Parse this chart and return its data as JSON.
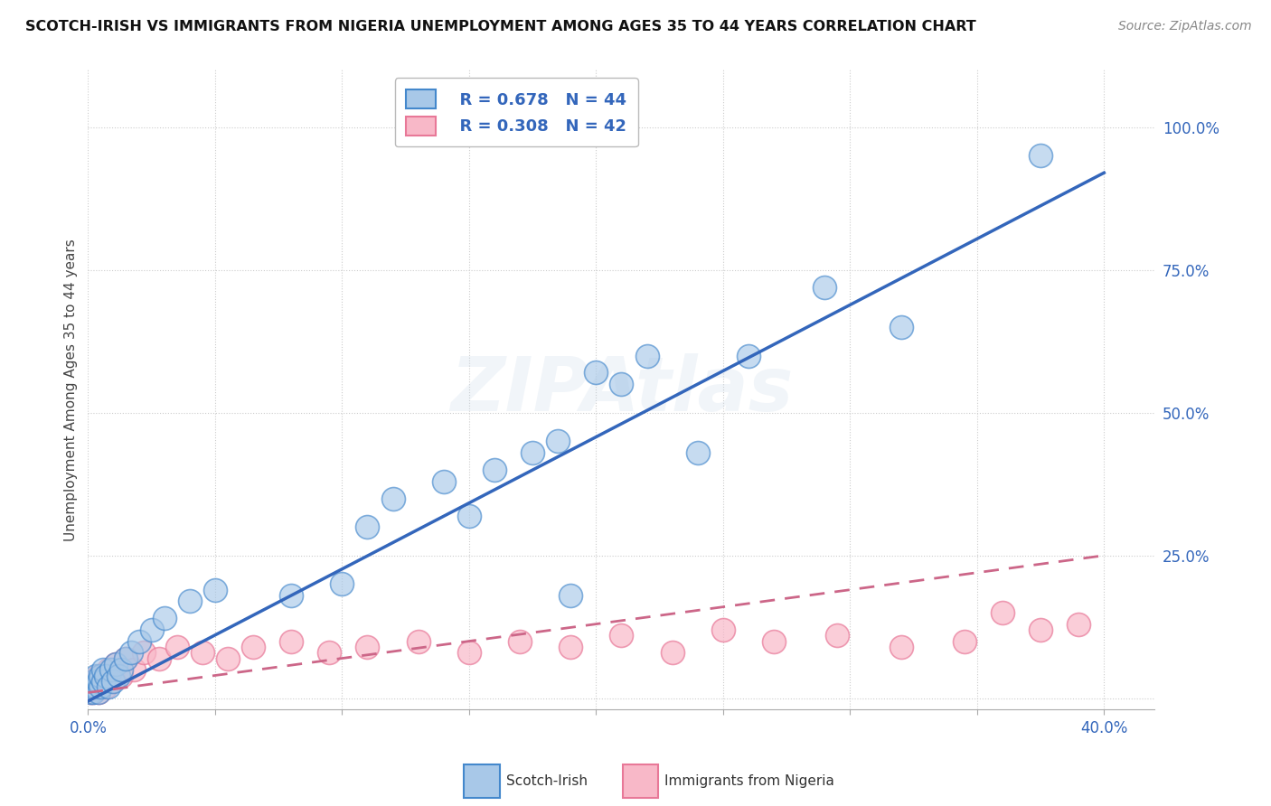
{
  "title": "SCOTCH-IRISH VS IMMIGRANTS FROM NIGERIA UNEMPLOYMENT AMONG AGES 35 TO 44 YEARS CORRELATION CHART",
  "source": "Source: ZipAtlas.com",
  "ylabel": "Unemployment Among Ages 35 to 44 years",
  "xlim": [
    0.0,
    0.42
  ],
  "ylim": [
    -0.02,
    1.1
  ],
  "ytick_vals": [
    0.0,
    0.25,
    0.5,
    0.75,
    1.0
  ],
  "ytick_labels": [
    "",
    "25.0%",
    "50.0%",
    "75.0%",
    "100.0%"
  ],
  "xtick_vals": [
    0.0,
    0.05,
    0.1,
    0.15,
    0.2,
    0.25,
    0.3,
    0.35,
    0.4
  ],
  "xtick_labels": [
    "0.0%",
    "",
    "",
    "",
    "",
    "",
    "",
    "",
    "40.0%"
  ],
  "legend_r1": "R = 0.678",
  "legend_n1": "N = 44",
  "legend_r2": "R = 0.308",
  "legend_n2": "N = 42",
  "blue_fill": "#A8C8E8",
  "blue_edge": "#4488CC",
  "pink_fill": "#F8B8C8",
  "pink_edge": "#E87898",
  "trend_blue": "#3366BB",
  "trend_pink": "#CC6688",
  "watermark": "ZIPAtlas",
  "scotch_irish_x": [
    0.001,
    0.001,
    0.002,
    0.002,
    0.003,
    0.003,
    0.004,
    0.004,
    0.005,
    0.005,
    0.006,
    0.006,
    0.007,
    0.008,
    0.009,
    0.01,
    0.011,
    0.012,
    0.013,
    0.015,
    0.017,
    0.02,
    0.025,
    0.03,
    0.04,
    0.05,
    0.08,
    0.1,
    0.11,
    0.12,
    0.14,
    0.15,
    0.16,
    0.175,
    0.185,
    0.19,
    0.2,
    0.21,
    0.22,
    0.24,
    0.26,
    0.29,
    0.32,
    0.375
  ],
  "scotch_irish_y": [
    0.01,
    0.02,
    0.01,
    0.03,
    0.02,
    0.04,
    0.01,
    0.03,
    0.02,
    0.04,
    0.03,
    0.05,
    0.04,
    0.02,
    0.05,
    0.03,
    0.06,
    0.04,
    0.05,
    0.07,
    0.08,
    0.1,
    0.12,
    0.14,
    0.17,
    0.19,
    0.18,
    0.2,
    0.3,
    0.35,
    0.38,
    0.32,
    0.4,
    0.43,
    0.45,
    0.18,
    0.57,
    0.55,
    0.6,
    0.43,
    0.6,
    0.72,
    0.65,
    0.95
  ],
  "nigeria_x": [
    0.001,
    0.001,
    0.002,
    0.002,
    0.003,
    0.003,
    0.004,
    0.004,
    0.005,
    0.005,
    0.006,
    0.007,
    0.008,
    0.009,
    0.01,
    0.011,
    0.013,
    0.015,
    0.018,
    0.022,
    0.028,
    0.035,
    0.045,
    0.055,
    0.065,
    0.08,
    0.095,
    0.11,
    0.13,
    0.15,
    0.17,
    0.19,
    0.21,
    0.23,
    0.25,
    0.27,
    0.295,
    0.32,
    0.345,
    0.36,
    0.375,
    0.39
  ],
  "nigeria_y": [
    0.01,
    0.02,
    0.01,
    0.03,
    0.02,
    0.03,
    0.01,
    0.04,
    0.02,
    0.03,
    0.04,
    0.02,
    0.05,
    0.03,
    0.04,
    0.06,
    0.04,
    0.07,
    0.05,
    0.08,
    0.07,
    0.09,
    0.08,
    0.07,
    0.09,
    0.1,
    0.08,
    0.09,
    0.1,
    0.08,
    0.1,
    0.09,
    0.11,
    0.08,
    0.12,
    0.1,
    0.11,
    0.09,
    0.1,
    0.15,
    0.12,
    0.13
  ],
  "blue_trendline_x": [
    0.0,
    0.4
  ],
  "blue_trendline_y": [
    -0.005,
    0.92
  ],
  "pink_trendline_x": [
    0.0,
    0.4
  ],
  "pink_trendline_y": [
    0.01,
    0.25
  ]
}
